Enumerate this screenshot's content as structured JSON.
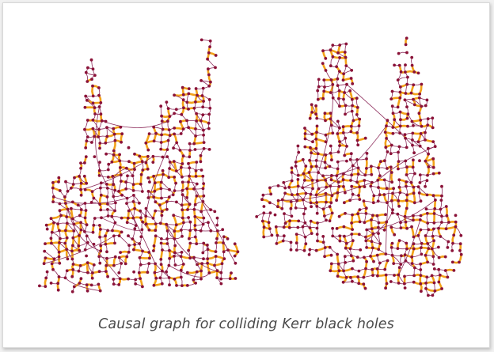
{
  "figure": {
    "caption": "Causal graph for colliding Kerr black holes",
    "colors": {
      "background": "#ffffff",
      "frame_border": "#d8d8d8",
      "caption_text": "#4a4a4a",
      "edge_thin": "#8c2a5a",
      "edge_thick": "#f2a21a",
      "node": "#8a1238"
    },
    "graphs": [
      {
        "id": "left-causal-graph",
        "label": ""
      },
      {
        "id": "right-causal-graph",
        "label": ""
      }
    ]
  }
}
